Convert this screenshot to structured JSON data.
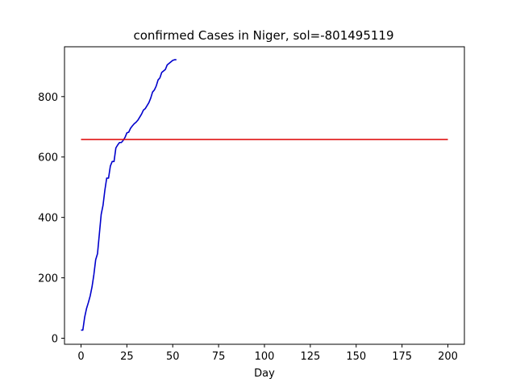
{
  "chart_data": {
    "type": "line",
    "title": "confirmed Cases in Niger, sol=-801495119",
    "xlabel": "Day",
    "ylabel": "",
    "xlim": [
      -9,
      209
    ],
    "ylim": [
      -20,
      965
    ],
    "xticks": [
      0,
      25,
      50,
      75,
      100,
      125,
      150,
      175,
      200
    ],
    "yticks": [
      0,
      200,
      400,
      600,
      800
    ],
    "grid": false,
    "series": [
      {
        "color": "#0000cc",
        "x": [
          0,
          1,
          2,
          3,
          4,
          5,
          6,
          7,
          8,
          9,
          10,
          11,
          12,
          13,
          14,
          15,
          16,
          17,
          18,
          19,
          20,
          21,
          22,
          23,
          24,
          25,
          26,
          27,
          28,
          29,
          30,
          31,
          32,
          33,
          34,
          35,
          36,
          37,
          38,
          39,
          40,
          41,
          42,
          43,
          44,
          45,
          46,
          47,
          48,
          49,
          50,
          51,
          52
        ],
        "y": [
          27,
          27,
          70,
          98,
          118,
          140,
          170,
          210,
          260,
          280,
          345,
          410,
          440,
          490,
          530,
          530,
          570,
          585,
          585,
          630,
          640,
          648,
          648,
          655,
          665,
          680,
          682,
          695,
          703,
          710,
          715,
          722,
          732,
          742,
          755,
          760,
          770,
          780,
          795,
          815,
          822,
          835,
          855,
          862,
          880,
          885,
          890,
          905,
          910,
          915,
          920,
          922,
          922
        ]
      },
      {
        "color": "#dd0000",
        "x": [
          0,
          200
        ],
        "y": [
          658,
          658
        ]
      }
    ]
  }
}
